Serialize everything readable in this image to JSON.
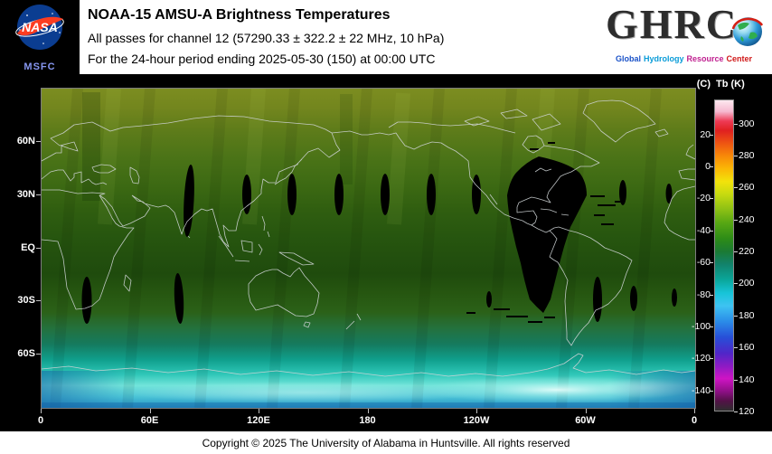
{
  "header": {
    "title": "NOAA-15 AMSU-A Brightness Temperatures",
    "subtitle": "All passes for channel 12 (57290.33 ± 322.2 ± 22 MHz, 10 hPa)",
    "period_line": "For the 24-hour period ending 2025-05-30 (150) at 00:00 UTC",
    "nasa_logo_text": "NASA",
    "nasa_msfc_label": "MSFC",
    "ghrc_logo_text": "GHRC",
    "ghrc_tagline_words": [
      [
        "Global",
        "#1a52c8"
      ],
      [
        "Hydrology",
        "#0a9cd8"
      ],
      [
        "Resource",
        "#c02090"
      ],
      [
        "Center",
        "#d01818"
      ]
    ]
  },
  "footer": {
    "copyright": "Copyright © 2025 The University of Alabama in Huntsville. All rights reserved"
  },
  "chart_data": {
    "type": "heatmap",
    "title": "NOAA-15 AMSU-A brightness temperature (Tb), channel 12, 24-hour global composite ending 2025-05-30 (day 150) 00:00 UTC",
    "projection": "equirectangular world map, longitude 0E eastward to 360 (0), latitude 90N to 90S",
    "x_axis": {
      "label": "longitude",
      "ticks": [
        "0",
        "60E",
        "120E",
        "180",
        "120W",
        "60W",
        "0"
      ],
      "lon_values": [
        0,
        60,
        120,
        180,
        240,
        300,
        360
      ]
    },
    "y_axis": {
      "label": "latitude",
      "ticks": [
        "60N",
        "30N",
        "EQ",
        "30S",
        "60S"
      ],
      "lat_values": [
        60,
        30,
        0,
        -30,
        -60
      ]
    },
    "colorbar": {
      "unit_left": "(C)",
      "unit_right": "Tb (K)",
      "kelvin_ticks": [
        300,
        280,
        260,
        240,
        220,
        200,
        180,
        160,
        140,
        120
      ],
      "celsius_ticks": [
        20,
        0,
        -20,
        -40,
        -60,
        -80,
        -100,
        -120,
        -140
      ],
      "range_k": [
        120,
        315
      ],
      "gradient_stops": [
        [
          0.0,
          "#fde8ef"
        ],
        [
          0.036,
          "#f6b9d0"
        ],
        [
          0.067,
          "#ee3a55"
        ],
        [
          0.097,
          "#e02020"
        ],
        [
          0.138,
          "#ee5512"
        ],
        [
          0.179,
          "#f88908"
        ],
        [
          0.221,
          "#fbb805"
        ],
        [
          0.262,
          "#f2e30b"
        ],
        [
          0.303,
          "#c6da10"
        ],
        [
          0.354,
          "#8abf14"
        ],
        [
          0.395,
          "#57a713"
        ],
        [
          0.446,
          "#2d8c17"
        ],
        [
          0.487,
          "#1b7a33"
        ],
        [
          0.528,
          "#12826b"
        ],
        [
          0.579,
          "#0aa79b"
        ],
        [
          0.621,
          "#17c4d8"
        ],
        [
          0.662,
          "#3ec3f2"
        ],
        [
          0.713,
          "#2b8ce8"
        ],
        [
          0.764,
          "#274fd8"
        ],
        [
          0.815,
          "#5026c8"
        ],
        [
          0.856,
          "#8c1bc4"
        ],
        [
          0.897,
          "#cf14c4"
        ],
        [
          0.938,
          "#8e0f86"
        ],
        [
          0.969,
          "#531147"
        ],
        [
          1.0,
          "#2e2e2e"
        ]
      ]
    },
    "field_gradient": [
      [
        0.0,
        "#7c8d20"
      ],
      [
        0.06,
        "#73861e"
      ],
      [
        0.13,
        "#5e7c1a"
      ],
      [
        0.22,
        "#4a7317"
      ],
      [
        0.3,
        "#3d6a13"
      ],
      [
        0.38,
        "#305e10"
      ],
      [
        0.46,
        "#27560f"
      ],
      [
        0.52,
        "#23500e"
      ],
      [
        0.58,
        "#1f4b0d"
      ],
      [
        0.64,
        "#265610"
      ],
      [
        0.7,
        "#2b6118"
      ],
      [
        0.75,
        "#24713d"
      ],
      [
        0.8,
        "#157a5e"
      ],
      [
        0.85,
        "#10a08d"
      ],
      [
        0.895,
        "#2fc7b8"
      ],
      [
        0.93,
        "#72e4da"
      ],
      [
        0.965,
        "#4ac3d6"
      ],
      [
        1.0,
        "#2391c4"
      ]
    ],
    "field_by_latitude": [
      {
        "zone": "75N-90N",
        "tb_k": 248,
        "appearance": "yellow-green"
      },
      {
        "zone": "60N-75N",
        "tb_k": 245,
        "appearance": "olive green"
      },
      {
        "zone": "30N-60N",
        "tb_k": 240,
        "appearance": "medium green"
      },
      {
        "zone": "10N-30N",
        "tb_k": 236,
        "appearance": "green"
      },
      {
        "zone": "10N-25S",
        "tb_k": 229,
        "appearance": "dark green"
      },
      {
        "zone": "25S-40S",
        "tb_k": 233,
        "appearance": "green"
      },
      {
        "zone": "40S-55S",
        "tb_k": 218,
        "appearance": "teal"
      },
      {
        "zone": "55S-70S",
        "tb_k": 202,
        "appearance": "cyan"
      },
      {
        "zone": "70S-80S",
        "tb_k": 190,
        "appearance": "bright cyan / white band"
      },
      {
        "zone": "80S-90S",
        "tb_k": 198,
        "appearance": "blue-cyan"
      }
    ],
    "data_gaps": {
      "description": "black regions = no satellite data in the 24-hour composite",
      "large_gap": "irregular missing swath ~103W-59W, 48N down to 33S (western Atlantic / Caribbean / northern South America) with short dashed gaps along its edges",
      "diamond_gaps_near_30N_lons": [
        "113E",
        "138E",
        "164E",
        "171W",
        "145W",
        "121W",
        "40W",
        "15W"
      ],
      "tall_sliver_gaps": [
        "~82E spanning 47N-6N",
        "~76E spanning 14S-42S"
      ],
      "diamond_gaps_near_30S_lons": [
        "25E",
        "114W",
        "54W",
        "34W"
      ]
    },
    "grid": "off",
    "legend_position": "vertical colorbar at right"
  }
}
